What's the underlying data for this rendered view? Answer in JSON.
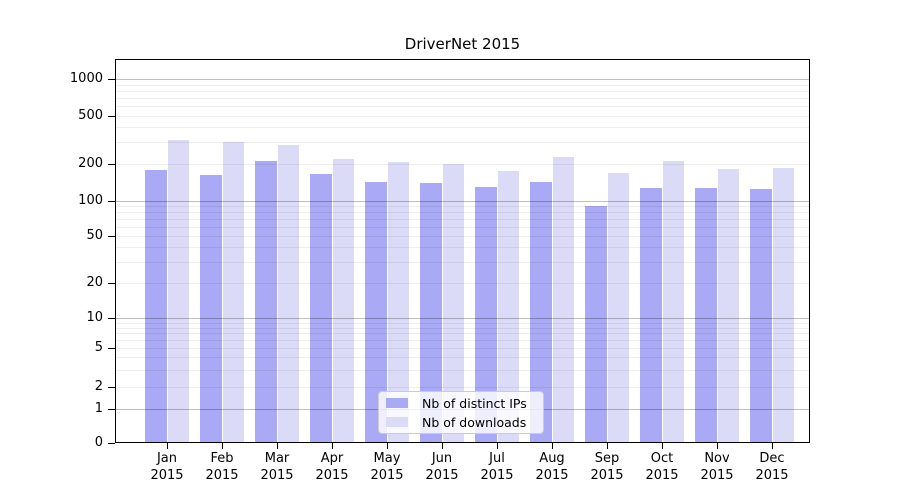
{
  "chart_data": {
    "type": "bar",
    "title": "DriverNet 2015",
    "categories": [
      "Jan",
      "Feb",
      "Mar",
      "Apr",
      "May",
      "Jun",
      "Jul",
      "Aug",
      "Sep",
      "Oct",
      "Nov",
      "Dec"
    ],
    "year_label": "2015",
    "series": [
      {
        "key": "ips",
        "name": "Nb of distinct IPs",
        "color": "#a9a9f5",
        "values": [
          177,
          160,
          211,
          165,
          142,
          139,
          129,
          141,
          90,
          127,
          127,
          124
        ]
      },
      {
        "key": "downloads",
        "name": "Nb of downloads",
        "color": "#dbdbf8",
        "values": [
          314,
          299,
          287,
          220,
          204,
          200,
          175,
          228,
          168,
          211,
          182,
          185
        ]
      }
    ],
    "yscale": "symlog",
    "yticks": [
      0,
      1,
      2,
      5,
      10,
      20,
      50,
      100,
      200,
      500,
      1000
    ],
    "ylim": [
      0,
      1000
    ],
    "grid": "horizontal",
    "legend_position": "lower-center"
  }
}
